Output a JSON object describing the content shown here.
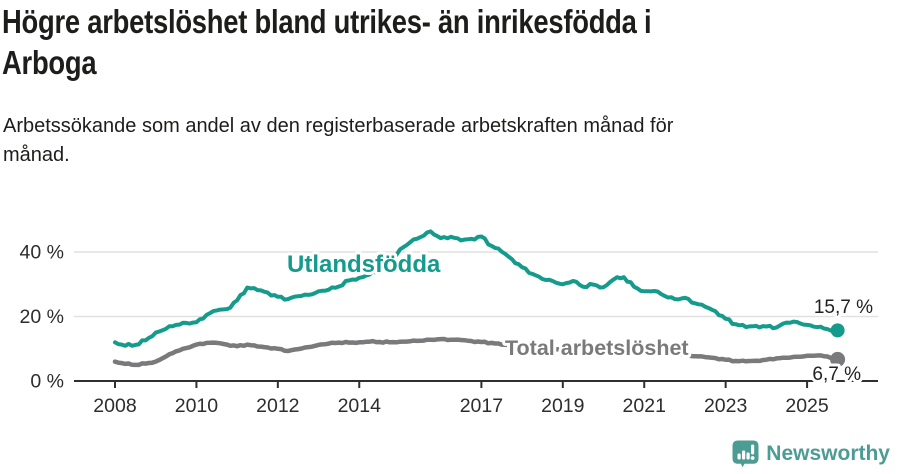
{
  "header": {
    "title_line1": "Högre arbetslöshet bland utrikes- än inrikesfödda i",
    "title_line2": "Arboga",
    "subtitle_line1": "Arbetssökande som andel av den registerbaserade arbetskraften månad för",
    "subtitle_line2": "månad."
  },
  "colors": {
    "accent_teal": "#149b8c",
    "series_total_gray": "#7a7a7c",
    "logo_teal": "#4d9c94",
    "axis": "#2f2f2f",
    "gridline": "#e1e1e1",
    "text": "#1d1d1b"
  },
  "chart_data": {
    "type": "line",
    "unit": "%",
    "title": "Högre arbetslöshet bland utrikes- än inrikesfödda i Arboga",
    "subtitle": "Arbetssökande som andel av den registerbaserade arbetskraften månad för månad.",
    "ylim": [
      0,
      48
    ],
    "grid": "horizontal",
    "legend": "inline-labels",
    "yticks": [
      {
        "value": 0,
        "label": "0 %"
      },
      {
        "value": 20,
        "label": "20 %"
      },
      {
        "value": 40,
        "label": "40 %"
      }
    ],
    "xticks": [
      {
        "value": 2008,
        "label": "2008"
      },
      {
        "value": 2010,
        "label": "2010"
      },
      {
        "value": 2012,
        "label": "2012"
      },
      {
        "value": 2014,
        "label": "2014"
      },
      {
        "value": 2017,
        "label": "2017"
      },
      {
        "value": 2019,
        "label": "2019"
      },
      {
        "value": 2021,
        "label": "2021"
      },
      {
        "value": 2023,
        "label": "2023"
      },
      {
        "value": 2025,
        "label": "2025"
      }
    ],
    "x": [
      2008,
      2008.25,
      2008.5,
      2008.75,
      2009,
      2009.25,
      2009.5,
      2009.75,
      2010,
      2010.25,
      2010.5,
      2010.75,
      2011,
      2011.25,
      2011.5,
      2011.75,
      2012,
      2012.25,
      2012.5,
      2012.75,
      2013,
      2013.25,
      2013.5,
      2013.75,
      2014,
      2014.25,
      2014.5,
      2014.75,
      2015,
      2015.25,
      2015.5,
      2015.75,
      2016,
      2016.25,
      2016.5,
      2016.75,
      2017,
      2017.25,
      2017.5,
      2017.75,
      2018,
      2018.25,
      2018.5,
      2018.75,
      2019,
      2019.25,
      2019.5,
      2019.75,
      2020,
      2020.25,
      2020.5,
      2020.75,
      2021,
      2021.25,
      2021.5,
      2021.75,
      2022,
      2022.25,
      2022.5,
      2022.75,
      2023,
      2023.25,
      2023.5,
      2023.75,
      2024,
      2024.25,
      2024.5,
      2024.75,
      2025,
      2025.25,
      2025.5,
      2025.75
    ],
    "series": [
      {
        "name": "Utlandsfödda",
        "color": "#149b8c",
        "end_label": "15,7 %",
        "end_value": 15.7,
        "values": [
          12.0,
          10.9,
          11.2,
          12.6,
          15.0,
          16.2,
          17.4,
          18.0,
          18.2,
          20.5,
          21.9,
          22.3,
          25.0,
          29.0,
          28.2,
          27.4,
          26.1,
          25.4,
          26.3,
          26.7,
          27.8,
          28.3,
          29.3,
          31.2,
          32.0,
          33.0,
          34.2,
          36.8,
          40.8,
          43.0,
          44.6,
          46.4,
          44.3,
          44.7,
          43.6,
          44.1,
          44.8,
          41.9,
          40.1,
          37.8,
          35.3,
          33.2,
          31.6,
          31.0,
          30.0,
          31.0,
          29.2,
          29.9,
          29.1,
          31.5,
          32.2,
          29.2,
          27.8,
          27.9,
          26.4,
          25.4,
          25.8,
          24.1,
          23.0,
          21.6,
          19.3,
          17.6,
          16.7,
          17.1,
          16.9,
          16.6,
          18.1,
          18.3,
          17.4,
          16.7,
          16.1,
          15.7
        ]
      },
      {
        "name": "Total arbetslöshet",
        "color": "#7a7a7c",
        "end_label": "6,7 %",
        "end_value": 6.7,
        "values": [
          6.0,
          5.3,
          5.0,
          5.4,
          6.0,
          7.6,
          9.2,
          10.2,
          11.3,
          11.8,
          11.8,
          11.3,
          10.8,
          11.3,
          10.7,
          10.4,
          10.0,
          9.3,
          9.9,
          10.5,
          11.2,
          11.6,
          11.9,
          11.9,
          12.0,
          12.2,
          12.1,
          12.0,
          12.2,
          12.3,
          12.5,
          12.8,
          13.0,
          12.8,
          12.7,
          12.4,
          12.1,
          11.8,
          11.3,
          11.0,
          10.7,
          10.4,
          10.2,
          10.0,
          9.8,
          9.6,
          9.5,
          9.7,
          9.9,
          11.3,
          11.6,
          11.0,
          10.4,
          9.9,
          9.3,
          8.7,
          8.2,
          7.7,
          7.4,
          7.1,
          6.6,
          6.2,
          6.1,
          6.3,
          6.6,
          7.0,
          7.2,
          7.5,
          7.8,
          7.9,
          7.6,
          6.7
        ]
      }
    ]
  },
  "footer": {
    "brand": "Newsworthy"
  }
}
